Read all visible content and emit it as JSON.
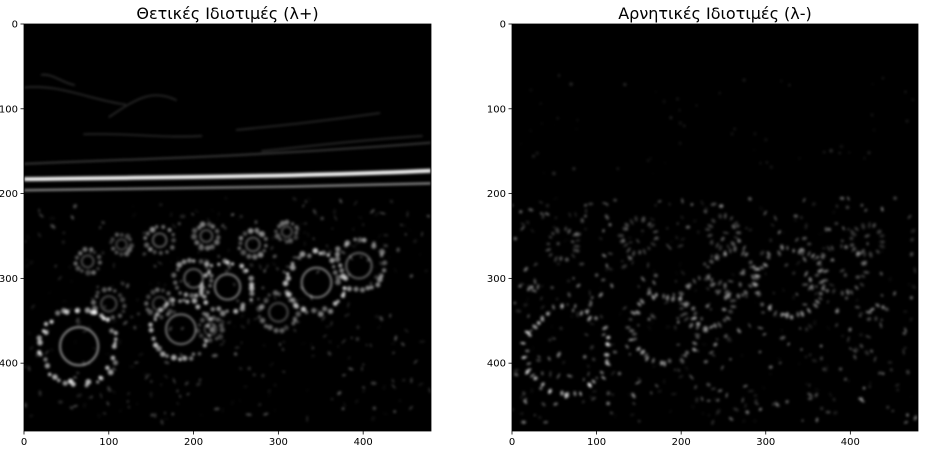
{
  "chart_data": [
    {
      "type": "heatmap",
      "title": "Θετικές Ιδιοτιμές (λ+)",
      "xlim": [
        0,
        480
      ],
      "ylim": [
        480,
        0
      ],
      "x_ticks": [
        0,
        100,
        200,
        300,
        400
      ],
      "y_ticks": [
        0,
        100,
        200,
        300,
        400
      ],
      "colormap": "gray",
      "background": "#000000"
    },
    {
      "type": "heatmap",
      "title": "Αρνητικές Ιδιοτιμές (λ-)",
      "xlim": [
        0,
        480
      ],
      "ylim": [
        480,
        0
      ],
      "x_ticks": [
        0,
        100,
        200,
        300,
        400
      ],
      "y_ticks": [
        0,
        100,
        200,
        300,
        400
      ],
      "colormap": "gray",
      "background": "#000000"
    }
  ]
}
